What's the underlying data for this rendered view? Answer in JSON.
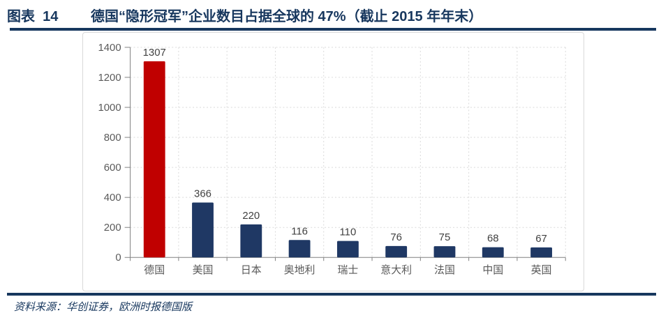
{
  "header": {
    "figure_label": "图表  14",
    "title": "德国“隐形冠军”企业数目占据全球的 47%（截止 2015 年年末）"
  },
  "source": {
    "text": "资料来源：华创证券，欧洲时报德国版"
  },
  "colors": {
    "accent_red": "#C00000",
    "bar_navy": "#1F3864",
    "rule_navy": "#17375E",
    "grid_gray": "#D9D9D9",
    "axis_gray": "#808080",
    "tick_text": "#595959",
    "value_text": "#404040"
  },
  "chart_data": {
    "type": "bar",
    "title": "德国“隐形冠军”企业数目占据全球的 47%（截止 2015 年年末）",
    "categories": [
      "德国",
      "美国",
      "日本",
      "奥地利",
      "瑞士",
      "意大利",
      "法国",
      "中国",
      "英国"
    ],
    "values": [
      1307,
      366,
      220,
      116,
      110,
      76,
      75,
      68,
      67
    ],
    "highlight_index": 0,
    "xlabel": "",
    "ylabel": "",
    "ylim": [
      0,
      1400
    ],
    "ytick_step": 200,
    "grid": "dashed-horizontal-and-vertical",
    "legend": "none"
  }
}
